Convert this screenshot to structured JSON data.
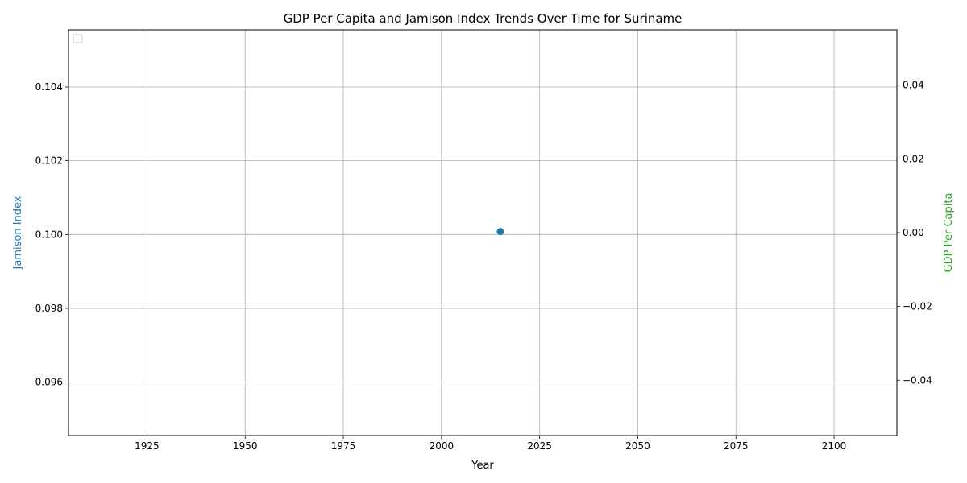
{
  "chart_data": {
    "type": "scatter",
    "title": "GDP Per Capita and Jamison Index Trends Over Time for Suriname",
    "xlabel": "Year",
    "ylabel_left": "Jamison Index",
    "ylabel_right": "GDP Per Capita",
    "xlim": [
      1905,
      2116
    ],
    "ylim_left": [
      0.09455,
      0.10555
    ],
    "ylim_right": [
      -0.055,
      0.055
    ],
    "x_ticks": [
      1925,
      1950,
      1975,
      2000,
      2025,
      2050,
      2075,
      2100,
      2125
    ],
    "y_ticks_left": [
      0.096,
      0.098,
      0.1,
      0.102,
      0.104
    ],
    "y_ticks_left_labels": [
      "0.096",
      "0.098",
      "0.100",
      "0.102",
      "0.104"
    ],
    "y_ticks_right": [
      -0.04,
      -0.02,
      0.0,
      0.02,
      0.04
    ],
    "y_ticks_right_labels": [
      "−0.04",
      "−0.02",
      "0.00",
      "0.02",
      "0.04"
    ],
    "grid": true,
    "legend": {
      "placement": "upper-left",
      "entries": []
    },
    "series": [
      {
        "axis": "left",
        "color": "#1f77b4",
        "points": [
          {
            "x": 2015,
            "y": 0.10008
          }
        ]
      },
      {
        "axis": "right",
        "color": "#2ca02c",
        "points": []
      }
    ],
    "colors": {
      "left_axis": "#1f77b4",
      "right_axis": "#2ca02c",
      "grid": "#b0b0b0"
    }
  }
}
